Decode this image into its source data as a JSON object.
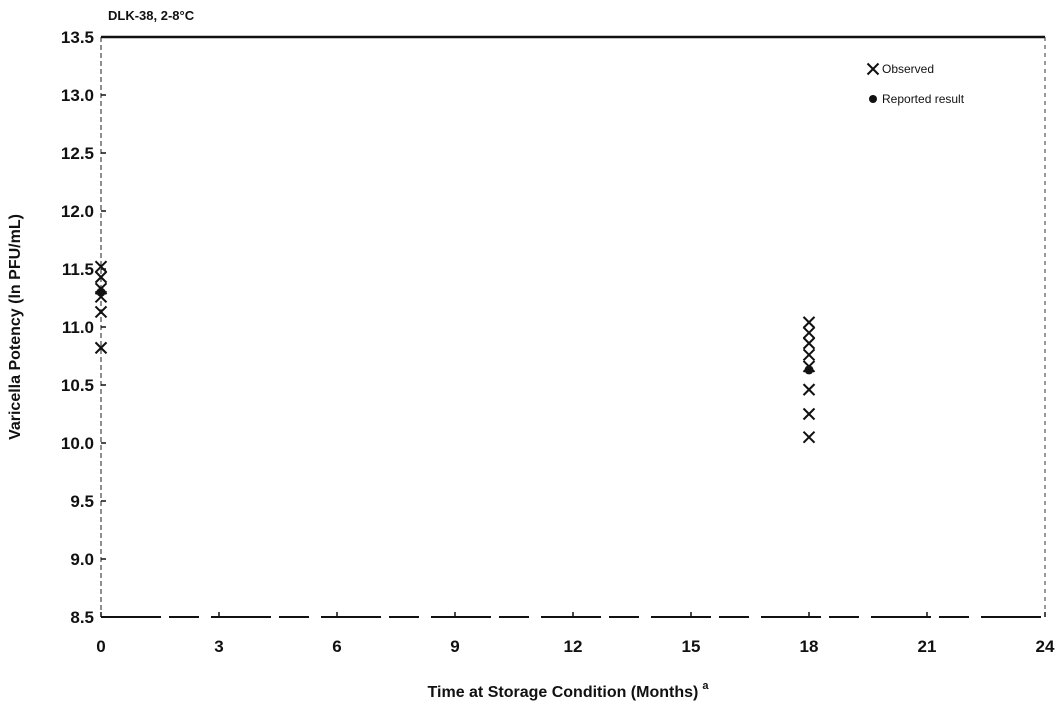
{
  "chart_data": {
    "type": "scatter",
    "title": "DLK-38, 2-8°C",
    "xlabel": "Time at Storage Condition (Months)",
    "xlabel_superscript": "a",
    "ylabel": "Varicella Potency (ln PFU/mL)",
    "xlim": [
      0,
      24
    ],
    "ylim": [
      8.5,
      13.5
    ],
    "x_ticks": [
      0,
      3,
      6,
      9,
      12,
      15,
      18,
      21,
      24
    ],
    "y_ticks": [
      8.5,
      9.0,
      9.5,
      10.0,
      10.5,
      11.0,
      11.5,
      12.0,
      12.5,
      13.0,
      13.5
    ],
    "grid": false,
    "legend_position": "top-right",
    "series": [
      {
        "name": "Observed",
        "marker": "x",
        "color": "#111111",
        "points": [
          {
            "x": 0,
            "y": 11.52
          },
          {
            "x": 0,
            "y": 11.43
          },
          {
            "x": 0,
            "y": 11.33
          },
          {
            "x": 0,
            "y": 11.26
          },
          {
            "x": 0,
            "y": 11.13
          },
          {
            "x": 0,
            "y": 10.82
          },
          {
            "x": 18,
            "y": 11.04
          },
          {
            "x": 18,
            "y": 10.95
          },
          {
            "x": 18,
            "y": 10.86
          },
          {
            "x": 18,
            "y": 10.76
          },
          {
            "x": 18,
            "y": 10.66
          },
          {
            "x": 18,
            "y": 10.46
          },
          {
            "x": 18,
            "y": 10.25
          },
          {
            "x": 18,
            "y": 10.05
          }
        ]
      },
      {
        "name": "Reported result",
        "marker": "dot",
        "color": "#111111",
        "points": [
          {
            "x": 0,
            "y": 11.3
          },
          {
            "x": 18,
            "y": 10.63
          }
        ]
      }
    ]
  }
}
